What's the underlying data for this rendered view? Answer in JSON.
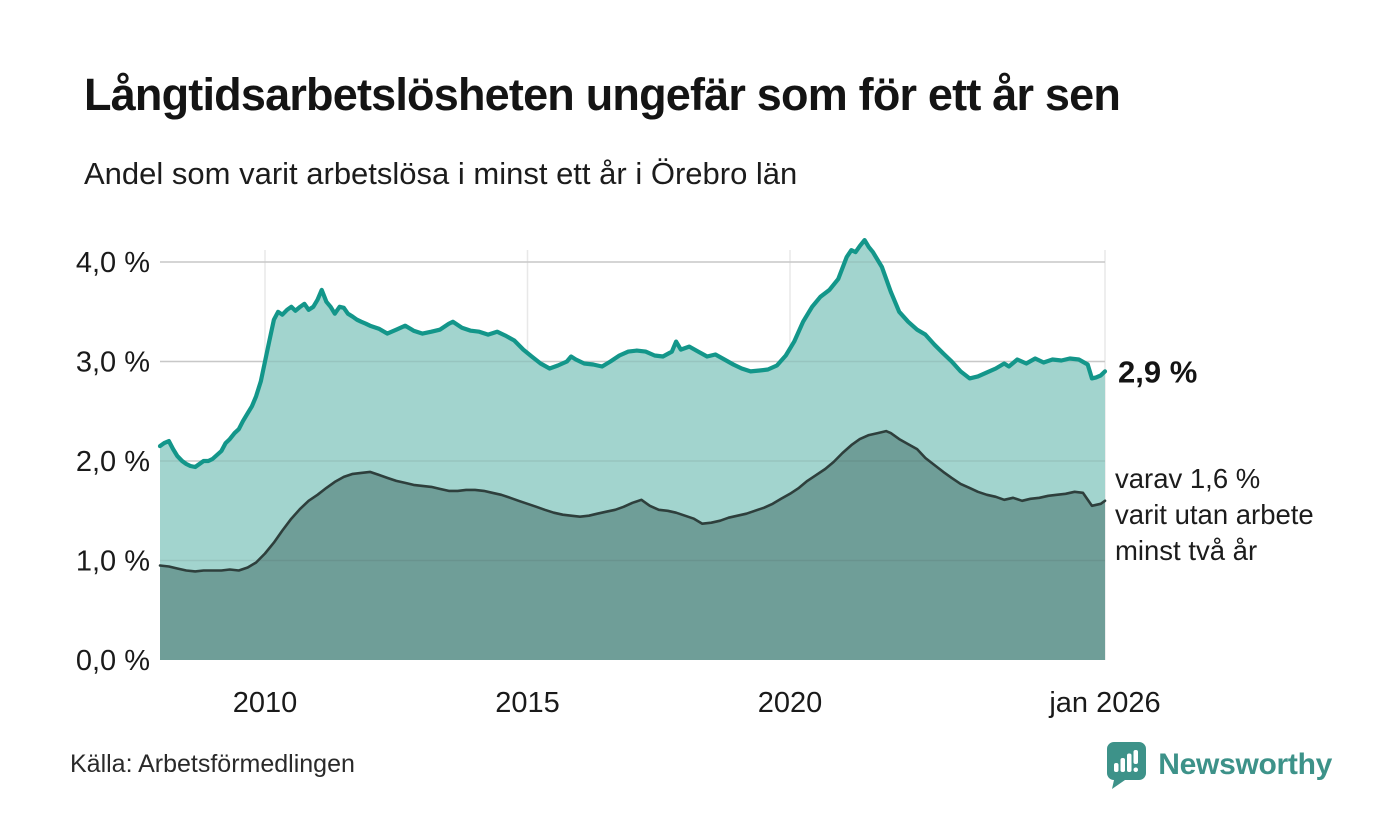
{
  "header": {
    "title": "Långtidsarbetslösheten ungefär som för ett år sen",
    "subtitle": "Andel som varit arbetslösa i minst ett år i Örebro län"
  },
  "footer": {
    "source": "Källa: Arbetsförmedlingen",
    "brand": "Newsworthy"
  },
  "colors": {
    "accent_teal": "#13968a",
    "area_light": "#a2d4ce",
    "area_dark": "#6f9e98",
    "line_dark": "#2e3f3c",
    "grid": "#d8d8d8",
    "text": "#1a1a1a",
    "brand_teal": "#3d9289"
  },
  "chart_data": {
    "type": "area",
    "title": "Långtidsarbetslösheten ungefär som för ett år sen",
    "subtitle": "Andel som varit arbetslösa i minst ett år i Örebro län",
    "x_axis": {
      "range": [
        2008,
        2026
      ],
      "ticks": [
        {
          "t": 2010,
          "label": "2010"
        },
        {
          "t": 2015,
          "label": "2015"
        },
        {
          "t": 2020,
          "label": "2020"
        },
        {
          "t": 2026,
          "label": "jan 2026"
        }
      ]
    },
    "y_axis": {
      "range": [
        0,
        4.4
      ],
      "unit": "%",
      "gridlines": [
        1,
        2,
        3,
        4
      ],
      "ticks": [
        {
          "v": 0,
          "label": "0,0 %"
        },
        {
          "v": 1,
          "label": "1,0 %"
        },
        {
          "v": 2,
          "label": "2,0 %"
        },
        {
          "v": 3,
          "label": "3,0 %"
        },
        {
          "v": 4,
          "label": "4,0 %"
        }
      ]
    },
    "series": [
      {
        "id": "unemployed_at_least_one_year",
        "latest_value": 2.9,
        "points": [
          [
            2008.0,
            2.15
          ],
          [
            2008.08,
            2.18
          ],
          [
            2008.17,
            2.2
          ],
          [
            2008.25,
            2.12
          ],
          [
            2008.33,
            2.05
          ],
          [
            2008.42,
            2.0
          ],
          [
            2008.5,
            1.97
          ],
          [
            2008.58,
            1.95
          ],
          [
            2008.67,
            1.94
          ],
          [
            2008.75,
            1.97
          ],
          [
            2008.83,
            2.0
          ],
          [
            2008.92,
            2.0
          ],
          [
            2009.0,
            2.02
          ],
          [
            2009.17,
            2.1
          ],
          [
            2009.25,
            2.18
          ],
          [
            2009.33,
            2.22
          ],
          [
            2009.42,
            2.28
          ],
          [
            2009.5,
            2.32
          ],
          [
            2009.58,
            2.4
          ],
          [
            2009.67,
            2.48
          ],
          [
            2009.75,
            2.55
          ],
          [
            2009.83,
            2.65
          ],
          [
            2009.92,
            2.8
          ],
          [
            2010.0,
            3.0
          ],
          [
            2010.08,
            3.2
          ],
          [
            2010.17,
            3.42
          ],
          [
            2010.25,
            3.5
          ],
          [
            2010.33,
            3.47
          ],
          [
            2010.42,
            3.52
          ],
          [
            2010.5,
            3.55
          ],
          [
            2010.58,
            3.51
          ],
          [
            2010.67,
            3.55
          ],
          [
            2010.75,
            3.58
          ],
          [
            2010.83,
            3.52
          ],
          [
            2010.92,
            3.55
          ],
          [
            2011.0,
            3.62
          ],
          [
            2011.08,
            3.72
          ],
          [
            2011.17,
            3.6
          ],
          [
            2011.25,
            3.55
          ],
          [
            2011.33,
            3.48
          ],
          [
            2011.42,
            3.55
          ],
          [
            2011.5,
            3.54
          ],
          [
            2011.58,
            3.48
          ],
          [
            2011.67,
            3.45
          ],
          [
            2011.75,
            3.42
          ],
          [
            2011.83,
            3.4
          ],
          [
            2011.92,
            3.38
          ],
          [
            2012.0,
            3.36
          ],
          [
            2012.17,
            3.33
          ],
          [
            2012.33,
            3.28
          ],
          [
            2012.5,
            3.32
          ],
          [
            2012.67,
            3.36
          ],
          [
            2012.83,
            3.31
          ],
          [
            2013.0,
            3.28
          ],
          [
            2013.17,
            3.3
          ],
          [
            2013.33,
            3.32
          ],
          [
            2013.5,
            3.38
          ],
          [
            2013.58,
            3.4
          ],
          [
            2013.75,
            3.34
          ],
          [
            2013.92,
            3.31
          ],
          [
            2014.08,
            3.3
          ],
          [
            2014.25,
            3.27
          ],
          [
            2014.42,
            3.3
          ],
          [
            2014.58,
            3.26
          ],
          [
            2014.75,
            3.21
          ],
          [
            2014.92,
            3.12
          ],
          [
            2015.08,
            3.05
          ],
          [
            2015.25,
            2.98
          ],
          [
            2015.42,
            2.93
          ],
          [
            2015.58,
            2.96
          ],
          [
            2015.75,
            3.0
          ],
          [
            2015.83,
            3.05
          ],
          [
            2015.92,
            3.02
          ],
          [
            2016.08,
            2.98
          ],
          [
            2016.25,
            2.97
          ],
          [
            2016.42,
            2.95
          ],
          [
            2016.58,
            3.0
          ],
          [
            2016.75,
            3.06
          ],
          [
            2016.92,
            3.1
          ],
          [
            2017.08,
            3.11
          ],
          [
            2017.25,
            3.1
          ],
          [
            2017.42,
            3.06
          ],
          [
            2017.58,
            3.05
          ],
          [
            2017.75,
            3.1
          ],
          [
            2017.83,
            3.2
          ],
          [
            2017.92,
            3.12
          ],
          [
            2018.08,
            3.15
          ],
          [
            2018.25,
            3.1
          ],
          [
            2018.42,
            3.05
          ],
          [
            2018.58,
            3.07
          ],
          [
            2018.75,
            3.02
          ],
          [
            2018.92,
            2.97
          ],
          [
            2019.08,
            2.93
          ],
          [
            2019.25,
            2.9
          ],
          [
            2019.42,
            2.91
          ],
          [
            2019.58,
            2.92
          ],
          [
            2019.75,
            2.96
          ],
          [
            2019.92,
            3.06
          ],
          [
            2020.08,
            3.2
          ],
          [
            2020.25,
            3.4
          ],
          [
            2020.42,
            3.55
          ],
          [
            2020.58,
            3.65
          ],
          [
            2020.75,
            3.72
          ],
          [
            2020.92,
            3.83
          ],
          [
            2021.08,
            4.05
          ],
          [
            2021.17,
            4.12
          ],
          [
            2021.25,
            4.1
          ],
          [
            2021.33,
            4.16
          ],
          [
            2021.42,
            4.22
          ],
          [
            2021.5,
            4.15
          ],
          [
            2021.58,
            4.1
          ],
          [
            2021.75,
            3.95
          ],
          [
            2021.92,
            3.7
          ],
          [
            2022.08,
            3.5
          ],
          [
            2022.25,
            3.4
          ],
          [
            2022.42,
            3.32
          ],
          [
            2022.58,
            3.27
          ],
          [
            2022.75,
            3.17
          ],
          [
            2022.92,
            3.08
          ],
          [
            2023.08,
            3.0
          ],
          [
            2023.25,
            2.9
          ],
          [
            2023.42,
            2.83
          ],
          [
            2023.58,
            2.85
          ],
          [
            2023.75,
            2.89
          ],
          [
            2023.92,
            2.93
          ],
          [
            2024.08,
            2.98
          ],
          [
            2024.17,
            2.95
          ],
          [
            2024.33,
            3.02
          ],
          [
            2024.5,
            2.98
          ],
          [
            2024.67,
            3.03
          ],
          [
            2024.83,
            2.99
          ],
          [
            2025.0,
            3.02
          ],
          [
            2025.17,
            3.01
          ],
          [
            2025.33,
            3.03
          ],
          [
            2025.5,
            3.02
          ],
          [
            2025.67,
            2.97
          ],
          [
            2025.75,
            2.83
          ],
          [
            2025.83,
            2.84
          ],
          [
            2025.92,
            2.86
          ],
          [
            2026.0,
            2.9
          ]
        ]
      },
      {
        "id": "unemployed_at_least_two_years",
        "latest_value": 1.6,
        "points": [
          [
            2008.0,
            0.95
          ],
          [
            2008.17,
            0.94
          ],
          [
            2008.33,
            0.92
          ],
          [
            2008.5,
            0.9
          ],
          [
            2008.67,
            0.89
          ],
          [
            2008.83,
            0.9
          ],
          [
            2009.0,
            0.9
          ],
          [
            2009.17,
            0.9
          ],
          [
            2009.33,
            0.91
          ],
          [
            2009.5,
            0.9
          ],
          [
            2009.67,
            0.93
          ],
          [
            2009.83,
            0.98
          ],
          [
            2010.0,
            1.07
          ],
          [
            2010.17,
            1.18
          ],
          [
            2010.33,
            1.3
          ],
          [
            2010.5,
            1.42
          ],
          [
            2010.67,
            1.52
          ],
          [
            2010.83,
            1.6
          ],
          [
            2011.0,
            1.66
          ],
          [
            2011.17,
            1.73
          ],
          [
            2011.33,
            1.79
          ],
          [
            2011.5,
            1.84
          ],
          [
            2011.67,
            1.87
          ],
          [
            2011.83,
            1.88
          ],
          [
            2012.0,
            1.89
          ],
          [
            2012.17,
            1.86
          ],
          [
            2012.33,
            1.83
          ],
          [
            2012.5,
            1.8
          ],
          [
            2012.67,
            1.78
          ],
          [
            2012.83,
            1.76
          ],
          [
            2013.0,
            1.75
          ],
          [
            2013.17,
            1.74
          ],
          [
            2013.33,
            1.72
          ],
          [
            2013.5,
            1.7
          ],
          [
            2013.67,
            1.7
          ],
          [
            2013.83,
            1.71
          ],
          [
            2014.0,
            1.71
          ],
          [
            2014.17,
            1.7
          ],
          [
            2014.33,
            1.68
          ],
          [
            2014.5,
            1.66
          ],
          [
            2014.67,
            1.63
          ],
          [
            2014.83,
            1.6
          ],
          [
            2015.0,
            1.57
          ],
          [
            2015.17,
            1.54
          ],
          [
            2015.33,
            1.51
          ],
          [
            2015.5,
            1.48
          ],
          [
            2015.67,
            1.46
          ],
          [
            2015.83,
            1.45
          ],
          [
            2016.0,
            1.44
          ],
          [
            2016.17,
            1.45
          ],
          [
            2016.33,
            1.47
          ],
          [
            2016.5,
            1.49
          ],
          [
            2016.67,
            1.51
          ],
          [
            2016.83,
            1.54
          ],
          [
            2017.0,
            1.58
          ],
          [
            2017.17,
            1.61
          ],
          [
            2017.33,
            1.55
          ],
          [
            2017.5,
            1.51
          ],
          [
            2017.67,
            1.5
          ],
          [
            2017.83,
            1.48
          ],
          [
            2018.0,
            1.45
          ],
          [
            2018.17,
            1.42
          ],
          [
            2018.33,
            1.37
          ],
          [
            2018.5,
            1.38
          ],
          [
            2018.67,
            1.4
          ],
          [
            2018.83,
            1.43
          ],
          [
            2019.0,
            1.45
          ],
          [
            2019.17,
            1.47
          ],
          [
            2019.33,
            1.5
          ],
          [
            2019.5,
            1.53
          ],
          [
            2019.67,
            1.57
          ],
          [
            2019.83,
            1.62
          ],
          [
            2020.0,
            1.67
          ],
          [
            2020.17,
            1.73
          ],
          [
            2020.33,
            1.8
          ],
          [
            2020.5,
            1.86
          ],
          [
            2020.67,
            1.92
          ],
          [
            2020.83,
            1.99
          ],
          [
            2021.0,
            2.08
          ],
          [
            2021.17,
            2.16
          ],
          [
            2021.33,
            2.22
          ],
          [
            2021.5,
            2.26
          ],
          [
            2021.67,
            2.28
          ],
          [
            2021.83,
            2.3
          ],
          [
            2021.92,
            2.28
          ],
          [
            2022.08,
            2.22
          ],
          [
            2022.25,
            2.17
          ],
          [
            2022.42,
            2.12
          ],
          [
            2022.58,
            2.03
          ],
          [
            2022.75,
            1.96
          ],
          [
            2022.92,
            1.89
          ],
          [
            2023.08,
            1.83
          ],
          [
            2023.25,
            1.77
          ],
          [
            2023.42,
            1.73
          ],
          [
            2023.58,
            1.69
          ],
          [
            2023.75,
            1.66
          ],
          [
            2023.92,
            1.64
          ],
          [
            2024.08,
            1.61
          ],
          [
            2024.25,
            1.63
          ],
          [
            2024.42,
            1.6
          ],
          [
            2024.58,
            1.62
          ],
          [
            2024.75,
            1.63
          ],
          [
            2024.92,
            1.65
          ],
          [
            2025.08,
            1.66
          ],
          [
            2025.25,
            1.67
          ],
          [
            2025.42,
            1.69
          ],
          [
            2025.58,
            1.68
          ],
          [
            2025.75,
            1.55
          ],
          [
            2025.92,
            1.57
          ],
          [
            2026.0,
            1.6
          ]
        ]
      }
    ],
    "annotations": {
      "latest_total": {
        "text": "2,9 %",
        "value": 2.9
      },
      "latest_two_years": {
        "lines": [
          "varav 1,6 %",
          "varit utan arbete",
          "minst två år"
        ],
        "value": 1.6
      }
    },
    "legend_position": "none",
    "grid": "horizontal-faint-vertical"
  }
}
